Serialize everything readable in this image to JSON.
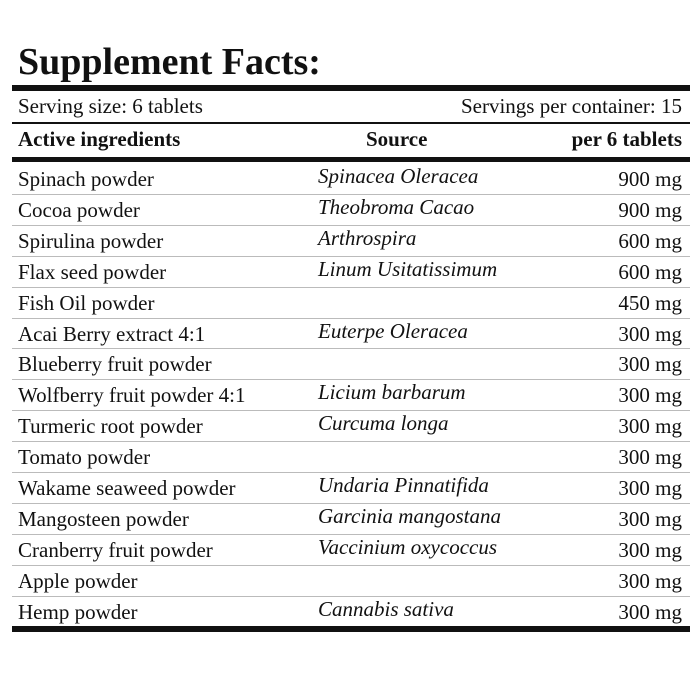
{
  "header": {
    "title": "Supplement Facts:",
    "serving_size": "Serving size: 6 tablets",
    "servings_per_container": "Servings per container: 15"
  },
  "table": {
    "columns": [
      "Active ingredients",
      "Source",
      "per 6 tablets"
    ],
    "rows": [
      {
        "name": "Spinach powder",
        "source": "Spinacea Oleracea",
        "amount": "900 mg"
      },
      {
        "name": "Cocoa powder",
        "source": "Theobroma Cacao",
        "amount": "900 mg"
      },
      {
        "name": "Spirulina powder",
        "source": "Arthrospira",
        "amount": "600 mg"
      },
      {
        "name": "Flax seed powder",
        "source": "Linum Usitatissimum",
        "amount": "600 mg"
      },
      {
        "name": "Fish Oil powder",
        "amount": "450 mg"
      },
      {
        "name": "Acai Berry extract 4:1",
        "source": "Euterpe Oleracea",
        "amount": "300 mg"
      },
      {
        "name": "Blueberry fruit powder",
        "amount": "300 mg"
      },
      {
        "name": "Wolfberry fruit powder 4:1",
        "source": "Licium barbarum",
        "amount": "300 mg"
      },
      {
        "name": "Turmeric root powder",
        "source": "Curcuma longa",
        "amount": "300 mg"
      },
      {
        "name": "Tomato powder",
        "amount": "300 mg"
      },
      {
        "name": "Wakame seaweed powder",
        "source": "Undaria Pinnatifida",
        "amount": "300 mg"
      },
      {
        "name": "Mangosteen powder",
        "source": "Garcinia mangostana",
        "amount": "300 mg"
      },
      {
        "name": "Cranberry fruit powder",
        "source": "Vaccinium oxycoccus",
        "amount": "300 mg"
      },
      {
        "name": "Apple powder",
        "amount": "300 mg"
      },
      {
        "name": "Hemp powder",
        "source": "Cannabis sativa",
        "amount": "300 mg"
      }
    ]
  }
}
